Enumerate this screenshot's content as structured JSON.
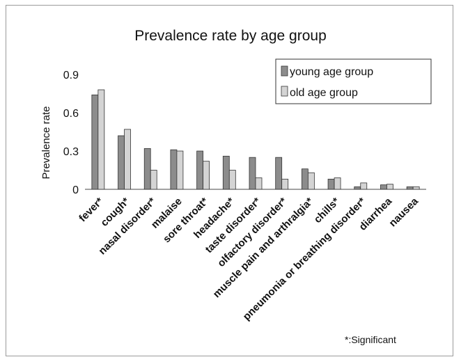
{
  "chart_data": {
    "type": "bar",
    "title": "Prevalence rate by age group",
    "xlabel": "",
    "ylabel": "Prevalence rate",
    "ylim": [
      0,
      0.9
    ],
    "yticks": [
      0,
      0.3,
      0.6,
      0.9
    ],
    "ytick_labels": [
      "0",
      "0.3",
      "0.6",
      "0.9"
    ],
    "grid": false,
    "legend_position": "top-right",
    "categories": [
      "fever*",
      "cough*",
      "nasal disorder*",
      "malaise",
      "sore throat*",
      "headache*",
      "taste disorder*",
      "olfactory disorder*",
      "muscle pain and arthralgia*",
      "chills*",
      "pneumonia or breathing disorder*",
      "diarrhea",
      "nausea"
    ],
    "series": [
      {
        "name": "young age group",
        "color": "#8c8c8c",
        "values": [
          0.74,
          0.42,
          0.32,
          0.31,
          0.3,
          0.26,
          0.25,
          0.25,
          0.16,
          0.08,
          0.02,
          0.035,
          0.02
        ]
      },
      {
        "name": "old age group",
        "color": "#d4d4d4",
        "values": [
          0.78,
          0.47,
          0.15,
          0.3,
          0.22,
          0.15,
          0.09,
          0.08,
          0.13,
          0.09,
          0.05,
          0.04,
          0.02
        ]
      }
    ],
    "annotation": "*:Significant"
  }
}
